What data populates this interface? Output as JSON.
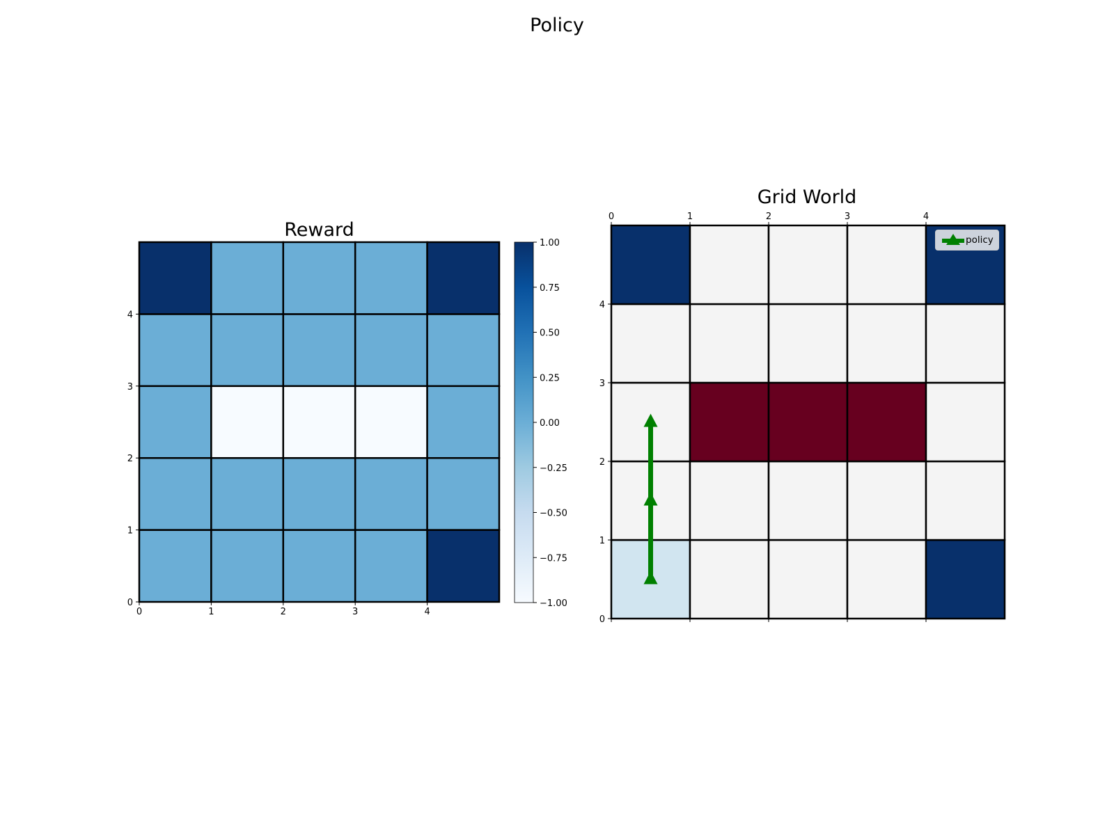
{
  "figure": {
    "title": "Policy"
  },
  "chart_data": [
    {
      "type": "heatmap",
      "title": "Reward",
      "grid_size": [
        5,
        5
      ],
      "x_ticks": [
        "0",
        "1",
        "2",
        "3",
        "4"
      ],
      "y_ticks": [
        "0",
        "1",
        "2",
        "3",
        "4"
      ],
      "values_bottom_to_top": [
        [
          0,
          0,
          0,
          0,
          1
        ],
        [
          0,
          0,
          0,
          0,
          0
        ],
        [
          0,
          -1,
          -1,
          -1,
          0
        ],
        [
          0,
          0,
          0,
          0,
          0
        ],
        [
          1,
          0,
          0,
          0,
          1
        ]
      ],
      "colorbar": {
        "range": [
          -1.0,
          1.0
        ],
        "ticks": [
          "1.00",
          "0.75",
          "0.50",
          "0.25",
          "0.00",
          "−0.25",
          "−0.50",
          "−0.75",
          "−1.00"
        ],
        "colormap": "Blues"
      },
      "colors": {
        "high": "#08306b",
        "zero": "#6baed6",
        "low": "#f7fbff"
      }
    },
    {
      "type": "heatmap",
      "title": "Grid World",
      "grid_size": [
        5,
        5
      ],
      "x_ticks": [
        "0",
        "1",
        "2",
        "3",
        "4"
      ],
      "y_ticks": [
        "0",
        "1",
        "2",
        "3",
        "4"
      ],
      "cells_bottom_to_top": [
        [
          "start",
          "empty",
          "empty",
          "empty",
          "goal"
        ],
        [
          "empty",
          "empty",
          "empty",
          "empty",
          "empty"
        ],
        [
          "empty",
          "obstacle",
          "obstacle",
          "obstacle",
          "empty"
        ],
        [
          "empty",
          "empty",
          "empty",
          "empty",
          "empty"
        ],
        [
          "goal",
          "empty",
          "empty",
          "empty",
          "goal"
        ]
      ],
      "colors": {
        "empty": "#f4f4f4",
        "goal": "#08306b",
        "obstacle": "#67001f",
        "start": "#d1e5f0",
        "policy": "#008000"
      },
      "policy_path": [
        [
          0.5,
          0.5
        ],
        [
          0.5,
          1.5
        ],
        [
          0.5,
          2.5
        ]
      ],
      "legend": {
        "label": "policy",
        "position": "top-right"
      }
    }
  ]
}
